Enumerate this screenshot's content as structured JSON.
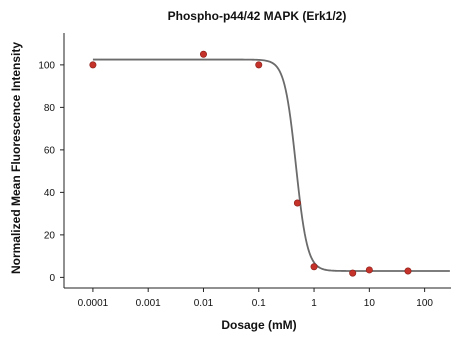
{
  "chart_data": {
    "type": "scatter",
    "title": "Phospho-p44/42 MAPK (Erk1/2)",
    "xlabel": "Dosage (mM)",
    "ylabel": "Normalized Mean Fluorescence Intensity",
    "x_scale": "log",
    "xlim": [
      3e-05,
      300
    ],
    "ylim": [
      -5,
      115
    ],
    "x_ticks": [
      0.0001,
      0.001,
      0.01,
      0.1,
      1,
      10,
      100
    ],
    "x_tick_labels": [
      "0.0001",
      "0.001",
      "0.01",
      "0.1",
      "1",
      "10",
      "100"
    ],
    "y_ticks": [
      0,
      20,
      40,
      60,
      80,
      100
    ],
    "y_tick_labels": [
      "0",
      "20",
      "40",
      "60",
      "80",
      "100"
    ],
    "grid": false,
    "legend": "none",
    "series": [
      {
        "x": [
          0.0001,
          0.01,
          0.1,
          0.5,
          1,
          5,
          10,
          50
        ],
        "y": [
          100,
          105,
          100,
          35,
          5,
          2,
          3.5,
          3
        ]
      }
    ],
    "fit_curve": {
      "type": "sigmoid",
      "top": 102.5,
      "bottom": 3,
      "ec50": 0.47,
      "hill": 4.2
    },
    "colors": {
      "points": "#c4322a",
      "curve": "#6b6b6b",
      "axis": "#222222"
    }
  }
}
